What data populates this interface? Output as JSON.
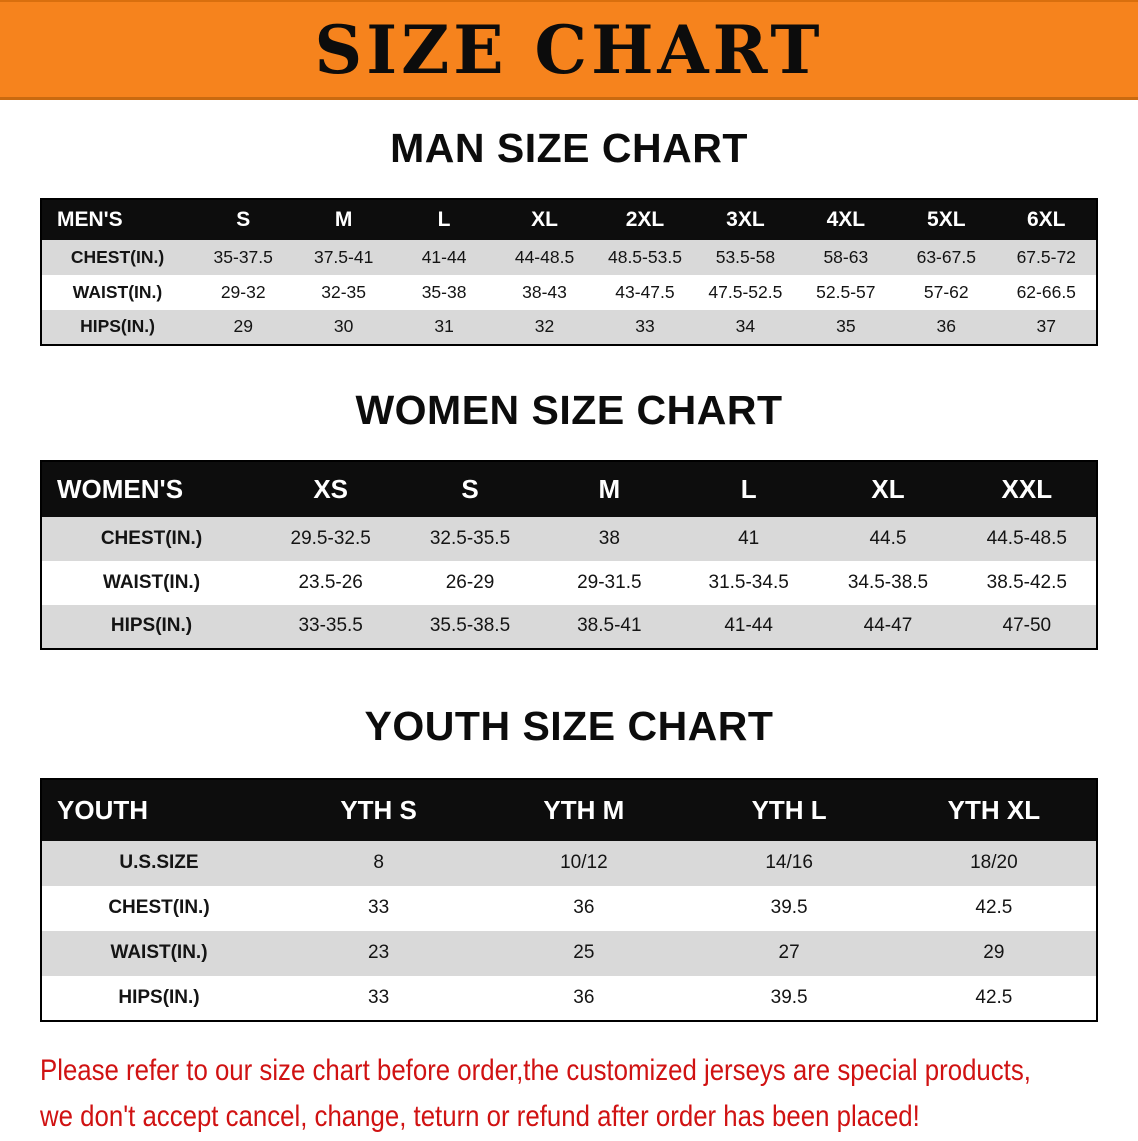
{
  "banner": {
    "title": "SIZE CHART",
    "bg_color": "#f6831d"
  },
  "sections": [
    {
      "id": "men",
      "heading": "MAN SIZE CHART",
      "table": {
        "header": [
          "MEN'S",
          "S",
          "M",
          "L",
          "XL",
          "2XL",
          "3XL",
          "4XL",
          "5XL",
          "6XL"
        ],
        "rows": [
          [
            "CHEST(IN.)",
            "35-37.5",
            "37.5-41",
            "41-44",
            "44-48.5",
            "48.5-53.5",
            "53.5-58",
            "58-63",
            "63-67.5",
            "67.5-72"
          ],
          [
            "WAIST(IN.)",
            "29-32",
            "32-35",
            "35-38",
            "38-43",
            "43-47.5",
            "47.5-52.5",
            "52.5-57",
            "57-62",
            "62-66.5"
          ],
          [
            "HIPS(IN.)",
            "29",
            "30",
            "31",
            "32",
            "33",
            "34",
            "35",
            "36",
            "37"
          ]
        ]
      }
    },
    {
      "id": "women",
      "heading": "WOMEN SIZE CHART",
      "table": {
        "header": [
          "WOMEN'S",
          "XS",
          "S",
          "M",
          "L",
          "XL",
          "XXL"
        ],
        "rows": [
          [
            "CHEST(IN.)",
            "29.5-32.5",
            "32.5-35.5",
            "38",
            "41",
            "44.5",
            "44.5-48.5"
          ],
          [
            "WAIST(IN.)",
            "23.5-26",
            "26-29",
            "29-31.5",
            "31.5-34.5",
            "34.5-38.5",
            "38.5-42.5"
          ],
          [
            "HIPS(IN.)",
            "33-35.5",
            "35.5-38.5",
            "38.5-41",
            "41-44",
            "44-47",
            "47-50"
          ]
        ]
      }
    },
    {
      "id": "youth",
      "heading": "YOUTH SIZE CHART",
      "table": {
        "header": [
          "YOUTH",
          "YTH S",
          "YTH M",
          "YTH L",
          "YTH XL"
        ],
        "rows": [
          [
            "U.S.SIZE",
            "8",
            "10/12",
            "14/16",
            "18/20"
          ],
          [
            "CHEST(IN.)",
            "33",
            "36",
            "39.5",
            "42.5"
          ],
          [
            "WAIST(IN.)",
            "23",
            "25",
            "27",
            "29"
          ],
          [
            "HIPS(IN.)",
            "33",
            "36",
            "39.5",
            "42.5"
          ]
        ]
      }
    }
  ],
  "disclaimer": {
    "line1": "Please refer to our size chart before order,the customized jerseys are special products,",
    "line2": "we don't accept cancel, change, teturn or refund after order has been placed!",
    "color": "#d01212"
  }
}
